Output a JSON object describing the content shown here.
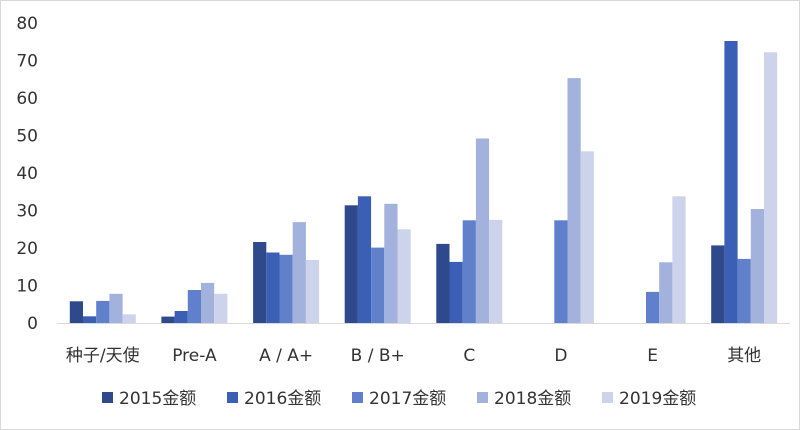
{
  "chart_data": {
    "type": "bar",
    "categories": [
      "种子/天使",
      "Pre-A",
      "A / A+",
      "B / B+",
      "C",
      "D",
      "E",
      "其他"
    ],
    "series": [
      {
        "name": "2015金额",
        "color": "#2e4a8c",
        "values": [
          5.8,
          1.7,
          21.6,
          31.4,
          21.1,
          null,
          null,
          20.7
        ]
      },
      {
        "name": "2016金额",
        "color": "#3b5fb4",
        "values": [
          1.8,
          3.2,
          18.8,
          33.8,
          16.3,
          null,
          null,
          75.2
        ]
      },
      {
        "name": "2017金额",
        "color": "#6080cc",
        "values": [
          5.9,
          8.8,
          18.2,
          20.1,
          27.4,
          27.4,
          8.3,
          17.1
        ]
      },
      {
        "name": "2018金额",
        "color": "#a2b2dc",
        "values": [
          7.8,
          10.7,
          26.9,
          31.8,
          49.2,
          65.3,
          16.2,
          30.4
        ]
      },
      {
        "name": "2019金额",
        "color": "#ccd3ea",
        "values": [
          2.3,
          7.8,
          16.8,
          25.0,
          27.5,
          45.8,
          33.8,
          72.2
        ]
      }
    ],
    "ylim": [
      0,
      80
    ],
    "yticks": [
      0,
      10,
      20,
      30,
      40,
      50,
      60,
      70,
      80
    ],
    "grid": false,
    "legend_position": "bottom"
  }
}
